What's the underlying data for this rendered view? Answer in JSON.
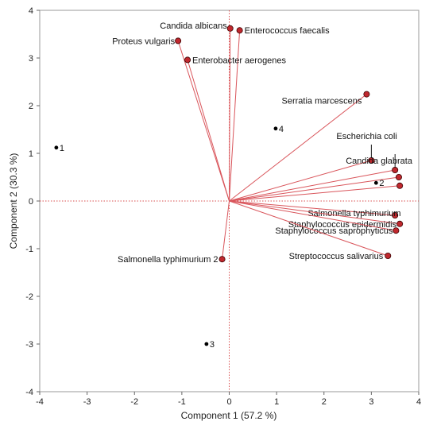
{
  "chart_data": {
    "type": "scatter",
    "subtype": "biplot",
    "xlabel": "Component 1  (57.2 %)",
    "ylabel": "Component 2  (30.3 %)",
    "xlim": [
      -4,
      4
    ],
    "ylim": [
      -4,
      4
    ],
    "xticks": [
      -4,
      -3,
      -2,
      -1,
      0,
      1,
      2,
      3,
      4
    ],
    "yticks": [
      -4,
      -3,
      -2,
      -1,
      0,
      1,
      2,
      3,
      4
    ],
    "grid": false,
    "reference_lines": {
      "x": 0,
      "y": 0,
      "style": "dotted",
      "color": "#d94f4f"
    },
    "scores": [
      {
        "label": "1",
        "x": -3.65,
        "y": 1.12
      },
      {
        "label": "2",
        "x": 3.1,
        "y": 0.38
      },
      {
        "label": "3",
        "x": -0.48,
        "y": -3.0
      },
      {
        "label": "4",
        "x": 0.98,
        "y": 1.52
      }
    ],
    "loadings": [
      {
        "label": "Candida albicans",
        "x": 0.02,
        "y": 3.62
      },
      {
        "label": "Enterococcus faecalis",
        "x": 0.22,
        "y": 3.58
      },
      {
        "label": "Proteus vulgaris",
        "x": -1.08,
        "y": 3.36
      },
      {
        "label": "Enterobacter aerogenes",
        "x": -0.88,
        "y": 2.96
      },
      {
        "label": "Serratia marcescens",
        "x": 2.9,
        "y": 2.24
      },
      {
        "label": "Escherichia coli",
        "x": 3.0,
        "y": 0.85
      },
      {
        "label": "Candida glabrata",
        "x": 3.5,
        "y": 0.65
      },
      {
        "label": "",
        "x": 3.58,
        "y": 0.5
      },
      {
        "label": "",
        "x": 3.6,
        "y": 0.32
      },
      {
        "label": "Salmonella typhimurium",
        "x": 3.5,
        "y": -0.3
      },
      {
        "label": "Staphylococcus epidermidis",
        "x": 3.6,
        "y": -0.48
      },
      {
        "label": "Staphylococcus saprophyticus",
        "x": 3.52,
        "y": -0.62
      },
      {
        "label": "Streptococcus salivarius",
        "x": 3.35,
        "y": -1.15
      },
      {
        "label": "Salmonella typhimurium 2",
        "x": -0.15,
        "y": -1.22
      }
    ],
    "colors": {
      "loading_line": "#d9555b",
      "loading_marker": "#c0282e",
      "score_marker": "#000000",
      "axis": "#666666",
      "frame": "#999999"
    }
  }
}
